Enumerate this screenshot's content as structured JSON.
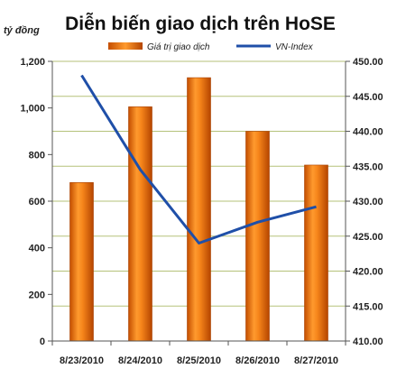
{
  "chart_data": {
    "type": "bar+line",
    "title": "Diễn biến giao dịch trên HoSE",
    "unit_label": "tỷ đồng",
    "categories": [
      "8/23/2010",
      "8/24/2010",
      "8/25/2010",
      "8/26/2010",
      "8/27/2010"
    ],
    "series": [
      {
        "name": "Giá trị giao dịch",
        "type": "bar",
        "axis": "left",
        "color": "#f07a10",
        "values": [
          680,
          1005,
          1130,
          900,
          755
        ]
      },
      {
        "name": "VN-Index",
        "type": "line",
        "axis": "right",
        "color": "#1f4fa8",
        "values": [
          448.0,
          434.5,
          424.0,
          427.0,
          429.2
        ]
      }
    ],
    "y_left": {
      "ylim": [
        0,
        1200
      ],
      "ticks": [
        0,
        200,
        400,
        600,
        800,
        1000,
        1200
      ],
      "tick_labels": [
        "0",
        "200",
        "400",
        "600",
        "800",
        "1,000",
        "1,200"
      ]
    },
    "y_right": {
      "ylim": [
        410,
        450
      ],
      "ticks": [
        410,
        415,
        420,
        425,
        430,
        435,
        440,
        445,
        450
      ],
      "tick_labels": [
        "410.00",
        "415.00",
        "420.00",
        "425.00",
        "430.00",
        "435.00",
        "440.00",
        "445.00",
        "450.00"
      ]
    },
    "grid": true,
    "grid_color": "#b5c27a",
    "legend_position": "top"
  }
}
